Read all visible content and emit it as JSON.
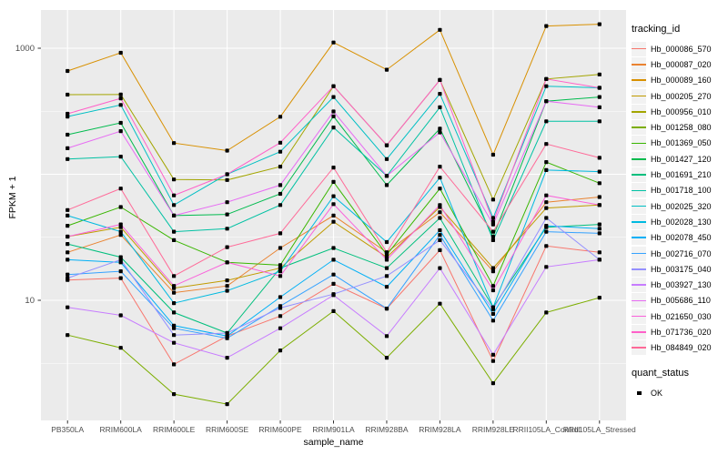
{
  "chart_data": {
    "type": "line",
    "title": "",
    "xlabel": "sample_name",
    "ylabel": "FPKM + 1",
    "y_scale": "log10",
    "ylim": [
      1.1,
      2000
    ],
    "y_tick_values": [
      1000,
      10
    ],
    "y_tick_labels": [
      "1000",
      "10"
    ],
    "y_gridlines_major": [
      10,
      100,
      1000
    ],
    "y_gridlines_minor": [
      3.162,
      31.62,
      316.2
    ],
    "grid": true,
    "legend_position": "right",
    "panel_bg": "#EBEBEB",
    "grid_color": "#FFFFFF",
    "point_color": "#000000",
    "axis_text_color": "#4D4D4D",
    "tick_mark_color": "#333333",
    "legend": {
      "tracking_id_title": "tracking_id",
      "quant_status_title": "quant_status",
      "quant_status_items": [
        {
          "label": "OK",
          "shape": "filled-square"
        }
      ]
    },
    "categories": [
      "PB350LA",
      "RRIM600LA",
      "RRIM600LE",
      "RRIM600SE",
      "RRIM600PE",
      "RRIM901LA",
      "RRIM928BA",
      "RRIM928LA",
      "RRIM928LE",
      "RRII105LA_Control",
      "RRII105LA_Stressed"
    ],
    "series": [
      {
        "name": "Hb_000086_570",
        "color": "#F8766D",
        "values": [
          14.5,
          15,
          3.1,
          5.2,
          7.5,
          13.5,
          8.6,
          25,
          3.3,
          27,
          24
        ]
      },
      {
        "name": "Hb_000087_020",
        "color": "#EA8331",
        "values": [
          24,
          33,
          11.5,
          13,
          26,
          47,
          24,
          50,
          17,
          60,
          66
        ]
      },
      {
        "name": "Hb_000089_160",
        "color": "#D89000",
        "values": [
          660,
          920,
          177,
          154,
          286,
          1110,
          675,
          1400,
          143,
          1500,
          1550
        ]
      },
      {
        "name": "Hb_000205_270",
        "color": "#C09B00",
        "values": [
          32,
          38,
          12.5,
          14.4,
          18,
          42,
          22,
          55,
          18,
          54,
          57
        ]
      },
      {
        "name": "Hb_000956_010",
        "color": "#A3A500",
        "values": [
          428,
          430,
          91,
          90,
          115,
          500,
          170,
          560,
          63,
          570,
          620
        ]
      },
      {
        "name": "Hb_001258_080",
        "color": "#7CAE00",
        "values": [
          5.3,
          4.2,
          1.8,
          1.5,
          4,
          8.2,
          3.5,
          9.4,
          2.2,
          8,
          10.5
        ]
      },
      {
        "name": "Hb_001369_050",
        "color": "#39B600",
        "values": [
          39,
          55,
          30,
          20,
          19,
          87,
          23,
          77,
          13,
          125,
          85
        ]
      },
      {
        "name": "Hb_001427_120",
        "color": "#00BB4E",
        "values": [
          206,
          256,
          47,
          48,
          70,
          288,
          82,
          230,
          32,
          380,
          410
        ]
      },
      {
        "name": "Hb_001691_210",
        "color": "#00BF7D",
        "values": [
          28,
          22,
          8,
          5.5,
          18,
          26,
          18,
          45,
          8.8,
          38,
          40
        ]
      },
      {
        "name": "Hb_001718_100",
        "color": "#00C1A3",
        "values": [
          132,
          138,
          35,
          37,
          57,
          235,
          97,
          340,
          30,
          263,
          263
        ]
      },
      {
        "name": "Hb_002025_320",
        "color": "#00BFC4",
        "values": [
          287,
          355,
          57,
          100,
          151,
          410,
          132,
          435,
          45,
          500,
          485
        ]
      },
      {
        "name": "Hb_002028_130",
        "color": "#00BAE0",
        "values": [
          47,
          35,
          9.5,
          11.9,
          17,
          67,
          29,
          94,
          8.8,
          108,
          105
        ]
      },
      {
        "name": "Hb_002078_450",
        "color": "#00B0F6",
        "values": [
          21,
          20,
          6.3,
          5.2,
          10.6,
          21,
          12.8,
          36,
          7.8,
          39,
          37
        ]
      },
      {
        "name": "Hb_002716_070",
        "color": "#35A2FF",
        "values": [
          16,
          17,
          6,
          5,
          9,
          16,
          8.6,
          33,
          6.9,
          35,
          34
        ]
      },
      {
        "name": "Hb_003175_040",
        "color": "#9590FF",
        "values": [
          15,
          21,
          5.3,
          5.5,
          8.7,
          11.2,
          15.6,
          30,
          8.5,
          45,
          21
        ]
      },
      {
        "name": "Hb_003927_130",
        "color": "#C77CFF",
        "values": [
          8.8,
          7.6,
          4.6,
          3.5,
          6,
          11,
          5.2,
          18,
          3.7,
          18.4,
          21
        ]
      },
      {
        "name": "Hb_005686_110",
        "color": "#E76BF3",
        "values": [
          161,
          220,
          47,
          60,
          82,
          315,
          97,
          215,
          40,
          380,
          340
        ]
      },
      {
        "name": "Hb_021650_030",
        "color": "#FA62DB",
        "values": [
          32,
          40,
          13,
          20,
          15.6,
          58,
          21,
          57,
          12,
          68,
          57
        ]
      },
      {
        "name": "Hb_071736_020",
        "color": "#FF61C9",
        "values": [
          302,
          400,
          68,
          100,
          178,
          500,
          170,
          560,
          42,
          570,
          485
        ]
      },
      {
        "name": "Hb_084849_020",
        "color": "#FF6A98",
        "values": [
          52,
          77,
          15.6,
          26.4,
          34,
          113,
          24,
          115,
          35,
          174,
          135
        ]
      }
    ]
  }
}
